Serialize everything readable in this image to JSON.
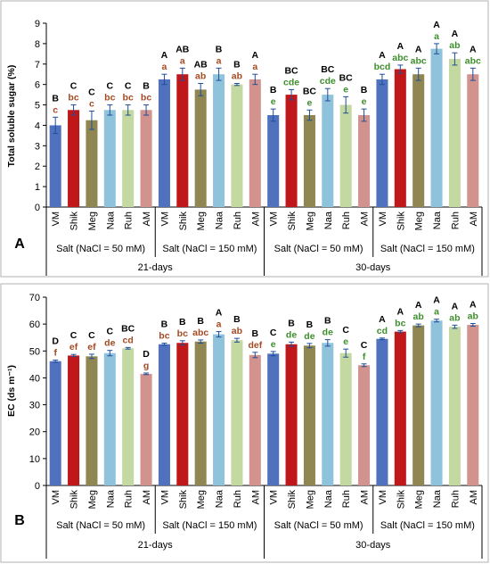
{
  "colors": {
    "VM": "#4f71be",
    "Shik": "#c0171a",
    "Meg": "#8f8652",
    "Naa": "#8fc3dc",
    "Ruh": "#c4d8a1",
    "AM": "#d2928e",
    "letter_brown": "#a44a23",
    "letter_green": "#3e8e2c",
    "errorbar": "#1f4e9a"
  },
  "chart_data": [
    {
      "type": "bar",
      "panel_label": "A",
      "ylabel": "Total soluble sugar (%)",
      "ylim": [
        0,
        9
      ],
      "yticks": [
        0,
        1,
        2,
        3,
        4,
        5,
        6,
        7,
        8,
        9
      ],
      "categories": [
        "VM",
        "Shik",
        "Meg",
        "Naa",
        "Ruh",
        "AM"
      ],
      "groups": [
        {
          "label": "Salt  (NaCl = 50 mM)",
          "values": [
            4.0,
            4.75,
            4.25,
            4.75,
            4.75,
            4.75
          ],
          "errors": [
            0.4,
            0.25,
            0.45,
            0.25,
            0.25,
            0.25
          ],
          "upper_letters": [
            "B",
            "C",
            "C",
            "C",
            "C",
            "B"
          ],
          "lower_letters": [
            "c",
            "bc",
            "c",
            "bc",
            "bc",
            "bc"
          ],
          "lower_color": "brown"
        },
        {
          "label": "Salt  (NaCl = 150 mM)",
          "values": [
            6.25,
            6.5,
            5.75,
            6.5,
            6.0,
            6.25
          ],
          "errors": [
            0.25,
            0.3,
            0.3,
            0.3,
            0.05,
            0.25
          ],
          "upper_letters": [
            "A",
            "AB",
            "AB",
            "B",
            "B",
            "A"
          ],
          "lower_letters": [
            "a",
            "a",
            "ab",
            "a",
            "ab",
            "a"
          ],
          "lower_color": "brown"
        },
        {
          "label": "Salt  (NaCl = 50 mM)",
          "values": [
            4.5,
            5.5,
            4.5,
            5.5,
            5.0,
            4.5
          ],
          "errors": [
            0.3,
            0.25,
            0.25,
            0.3,
            0.4,
            0.3
          ],
          "upper_letters": [
            "B",
            "BC",
            "BC",
            "BC",
            "BC",
            "B"
          ],
          "lower_letters": [
            "e",
            "cde",
            "e",
            "cde",
            "e",
            "e"
          ],
          "lower_color": "green"
        },
        {
          "label": "Salt  (NaCl = 150 mM)",
          "values": [
            6.25,
            6.75,
            6.5,
            7.75,
            7.25,
            6.5
          ],
          "errors": [
            0.25,
            0.2,
            0.3,
            0.25,
            0.3,
            0.3
          ],
          "upper_letters": [
            "A",
            "A",
            "A",
            "A",
            "A",
            "A"
          ],
          "lower_letters": [
            "bcd",
            "abc",
            "abc",
            "a",
            "ab",
            "abc"
          ],
          "lower_color": "green"
        }
      ],
      "periods": [
        "21-days",
        "30-days"
      ]
    },
    {
      "type": "bar",
      "panel_label": "B",
      "ylabel": "EC (ds m⁻¹)",
      "ylim": [
        0,
        70
      ],
      "yticks": [
        0,
        10,
        20,
        30,
        40,
        50,
        60,
        70
      ],
      "categories": [
        "VM",
        "Shik",
        "Meg",
        "Naa",
        "Ruh",
        "AM"
      ],
      "groups": [
        {
          "label": "Salt  (NaCl = 50 mM)",
          "values": [
            46.2,
            48.3,
            48.0,
            49.2,
            51.0,
            41.5
          ],
          "errors": [
            0.4,
            0.4,
            0.8,
            1.0,
            0.3,
            0.3
          ],
          "upper_letters": [
            "D",
            "C",
            "C",
            "C",
            "BC",
            "D"
          ],
          "lower_letters": [
            "f",
            "ef",
            "ef",
            "de",
            "cd",
            "g"
          ],
          "lower_color": "brown"
        },
        {
          "label": "Salt  (NaCl = 150 mM)",
          "values": [
            52.5,
            53.0,
            53.5,
            56.2,
            54.0,
            48.5
          ],
          "errors": [
            0.4,
            0.8,
            0.6,
            1.0,
            0.7,
            1.0
          ],
          "upper_letters": [
            "B",
            "B",
            "B",
            "A",
            "B",
            "B"
          ],
          "lower_letters": [
            "bc",
            "bc",
            "abc",
            "a",
            "ab",
            "def"
          ],
          "lower_color": "brown"
        },
        {
          "label": "Salt  (NaCl = 50 mM)",
          "values": [
            49.0,
            52.5,
            52.0,
            53.0,
            49.2,
            44.7
          ],
          "errors": [
            0.8,
            0.8,
            0.8,
            1.2,
            1.5,
            0.5
          ],
          "upper_letters": [
            "C",
            "B",
            "B",
            "B",
            "C",
            "C"
          ],
          "lower_letters": [
            "e",
            "de",
            "de",
            "de",
            "e",
            "f"
          ],
          "lower_color": "green"
        },
        {
          "label": "Salt  (NaCl = 150 mM)",
          "values": [
            54.5,
            57.2,
            59.5,
            61.3,
            59.0,
            59.7
          ],
          "errors": [
            0.3,
            0.4,
            0.5,
            0.5,
            0.6,
            0.5
          ],
          "upper_letters": [
            "A",
            "A",
            "A",
            "A",
            "A",
            "A"
          ],
          "lower_letters": [
            "cd",
            "bc",
            "ab",
            "a",
            "ab",
            "ab"
          ],
          "lower_color": "green"
        }
      ],
      "periods": [
        "21-days",
        "30-days"
      ]
    }
  ]
}
